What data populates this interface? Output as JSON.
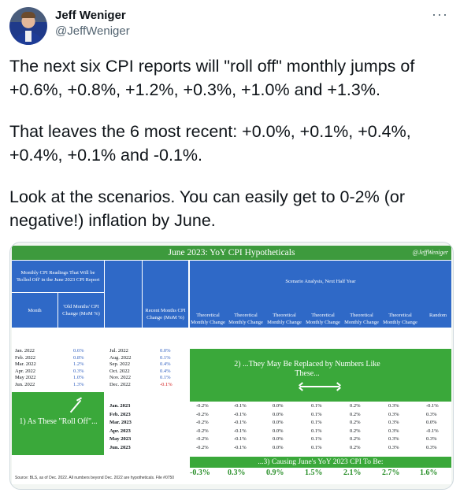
{
  "tweet": {
    "author_name": "Jeff Weniger",
    "author_handle": "@JeffWeniger",
    "more_icon": "more-horizontal-icon",
    "paragraphs": [
      "The next six CPI reports will \"roll off\" monthly jumps of +0.6%, +0.8%, +1.2%, +0.3%, +1.0% and +1.3%.",
      "That leaves the 6 most recent: +0.0%, +0.1%, +0.4%, +0.4%, +0.1% and -0.1%.",
      "Look at the scenarios. You can easily get to 0-2% (or negative!) inflation by June."
    ]
  },
  "image": {
    "title": "June 2023: YoY CPI Hypotheticals",
    "handle": "@JeffWeniger",
    "left_header": "Monthly CPI Readings That Will be 'Rolled Off' in the June 2023 CPI Report",
    "month_header": "Month",
    "old_header": "'Old Months' CPI Change (MoM %)",
    "recent_header": "Recent Months CPI Change (MoM %)",
    "scenario_header": "Scenario Analysis, Next Half Year",
    "scenario_cols": [
      "Theoretical Monthly Change",
      "Theoretical Monthly Change",
      "Theoretical Monthly Change",
      "Theoretical Monthly Change",
      "Theoretical Monthly Change",
      "Theoretical Monthly Change",
      "Random"
    ],
    "old_rows": [
      {
        "month": "Jan. 2022",
        "val": "0.6%"
      },
      {
        "month": "Feb. 2022",
        "val": "0.8%"
      },
      {
        "month": "Mar. 2022",
        "val": "1.2%"
      },
      {
        "month": "Apr. 2022",
        "val": "0.3%"
      },
      {
        "month": "May 2022",
        "val": "1.0%"
      },
      {
        "month": "Jun. 2022",
        "val": "1.3%"
      }
    ],
    "recent_rows": [
      {
        "month": "Jul. 2022",
        "val": "0.0%"
      },
      {
        "month": "Aug. 2022",
        "val": "0.1%"
      },
      {
        "month": "Sep. 2022",
        "val": "0.4%"
      },
      {
        "month": "Oct. 2022",
        "val": "0.4%"
      },
      {
        "month": "Nov. 2022",
        "val": "0.1%"
      },
      {
        "month": "Dec. 2022",
        "val": "-0.1%"
      }
    ],
    "future_months": [
      "Jan. 2023",
      "Feb. 2023",
      "Mar. 2023",
      "Apr. 2023",
      "May 2023",
      "Jun. 2023"
    ],
    "scenario_values": [
      [
        "-0.2%",
        "-0.1%",
        "0.0%",
        "0.1%",
        "0.2%",
        "0.3%",
        "-0.1%"
      ],
      [
        "-0.2%",
        "-0.1%",
        "0.0%",
        "0.1%",
        "0.2%",
        "0.3%",
        "0.3%"
      ],
      [
        "-0.2%",
        "-0.1%",
        "0.0%",
        "0.1%",
        "0.2%",
        "0.3%",
        "0.0%"
      ],
      [
        "-0.2%",
        "-0.1%",
        "0.0%",
        "0.1%",
        "0.2%",
        "0.3%",
        "-0.1%"
      ],
      [
        "-0.2%",
        "-0.1%",
        "0.0%",
        "0.1%",
        "0.2%",
        "0.3%",
        "0.3%"
      ],
      [
        "-0.2%",
        "-0.1%",
        "0.0%",
        "0.1%",
        "0.2%",
        "0.3%",
        "0.3%"
      ]
    ],
    "msg_right": "2) ...They May Be Replaced by Numbers Like These...",
    "msg_left": "1) As These \"Roll Off\"...",
    "bottom_bar": "...3) Causing June's YoY 2023 CPI To Be:",
    "results": [
      "-0.3%",
      "0.3%",
      "0.9%",
      "1.5%",
      "2.1%",
      "2.7%",
      "1.6%"
    ],
    "source": "Source: BLS, as of Dec. 2022. All numbers beyond Dec. 2022 are hypotheticals. File #0750"
  },
  "colors": {
    "title_green": "#3d9a3d",
    "header_blue": "#2f69c7",
    "panel_green": "#3aa83a",
    "value_blue": "#2f5fc0",
    "value_red": "#d42020"
  }
}
